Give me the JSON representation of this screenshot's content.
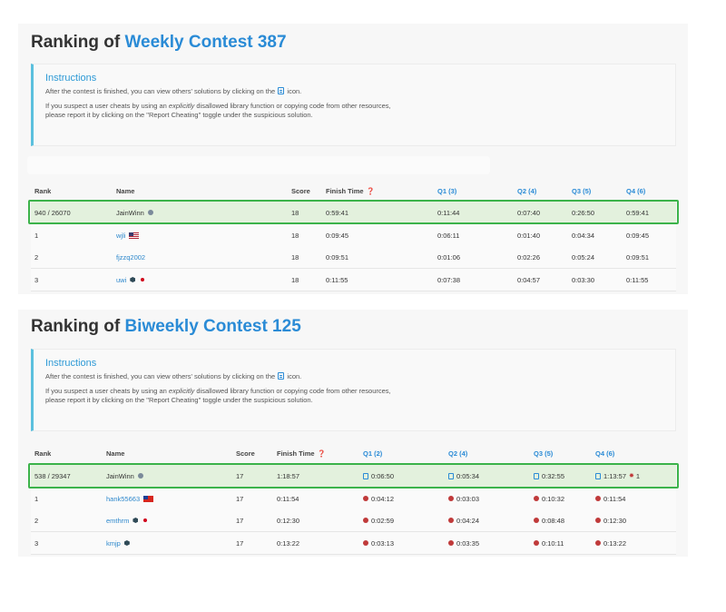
{
  "weekly": {
    "title_prefix": "Ranking of",
    "title_contest": "Weekly Contest 387",
    "instructions": {
      "heading": "Instructions",
      "line1_before": "After the contest is finished, you can view others' solutions by clicking on the",
      "line1_after": "icon.",
      "line2_before": "If you suspect a user cheats by using an",
      "line2_em": "explicitly",
      "line2_after": "disallowed library function or copying code from other resources,",
      "line3": "please report it by clicking on the \"Report Cheating\" toggle under the suspicious solution."
    },
    "headers": {
      "rank": "Rank",
      "name": "Name",
      "score": "Score",
      "finish": "Finish Time",
      "q1": "Q1 (3)",
      "q2": "Q2 (4)",
      "q3": "Q3 (5)",
      "q4": "Q4 (6)"
    },
    "rows": [
      {
        "rank": "940 / 26070",
        "name": "JainWinn",
        "score": "18",
        "finish": "0:59:41",
        "q1": "0:11:44",
        "q2": "0:07:40",
        "q3": "0:26:50",
        "q4": "0:59:41"
      },
      {
        "rank": "1",
        "name": "wjli",
        "score": "18",
        "finish": "0:09:45",
        "q1": "0:06:11",
        "q2": "0:01:40",
        "q3": "0:04:34",
        "q4": "0:09:45"
      },
      {
        "rank": "2",
        "name": "fjzzq2002",
        "score": "18",
        "finish": "0:09:51",
        "q1": "0:01:06",
        "q2": "0:02:26",
        "q3": "0:05:24",
        "q4": "0:09:51"
      },
      {
        "rank": "3",
        "name": "uwi",
        "score": "18",
        "finish": "0:11:55",
        "q1": "0:07:38",
        "q2": "0:04:57",
        "q3": "0:03:30",
        "q4": "0:11:55"
      }
    ]
  },
  "biweekly": {
    "title_prefix": "Ranking of",
    "title_contest": "Biweekly Contest 125",
    "instructions": {
      "heading": "Instructions",
      "line1_before": "After the contest is finished, you can view others' solutions by clicking on the",
      "line1_after": "icon.",
      "line2_before": "If you suspect a user cheats by using an",
      "line2_em": "explicitly",
      "line2_after": "disallowed library function or copying code from other resources,",
      "line3": "please report it by clicking on the \"Report Cheating\" toggle under the suspicious solution."
    },
    "headers": {
      "rank": "Rank",
      "name": "Name",
      "score": "Score",
      "finish": "Finish Time",
      "q1": "Q1 (2)",
      "q2": "Q2 (4)",
      "q3": "Q3 (5)",
      "q4": "Q4 (6)"
    },
    "rows": [
      {
        "rank": "538 / 29347",
        "name": "JainWinn",
        "score": "17",
        "finish": "1:18:57",
        "q1": "0:06:50",
        "q2": "0:05:34",
        "q3": "0:32:55",
        "q4": "1:13:57",
        "q4_bugs": "1"
      },
      {
        "rank": "1",
        "name": "hank55663",
        "score": "17",
        "finish": "0:11:54",
        "q1": "0:04:12",
        "q2": "0:03:03",
        "q3": "0:10:32",
        "q4": "0:11:54"
      },
      {
        "rank": "2",
        "name": "emthrm",
        "score": "17",
        "finish": "0:12:30",
        "q1": "0:02:59",
        "q2": "0:04:24",
        "q3": "0:08:48",
        "q4": "0:12:30"
      },
      {
        "rank": "3",
        "name": "kmjp",
        "score": "17",
        "finish": "0:13:22",
        "q1": "0:03:13",
        "q2": "0:03:35",
        "q3": "0:10:11",
        "q4": "0:13:22"
      }
    ]
  }
}
